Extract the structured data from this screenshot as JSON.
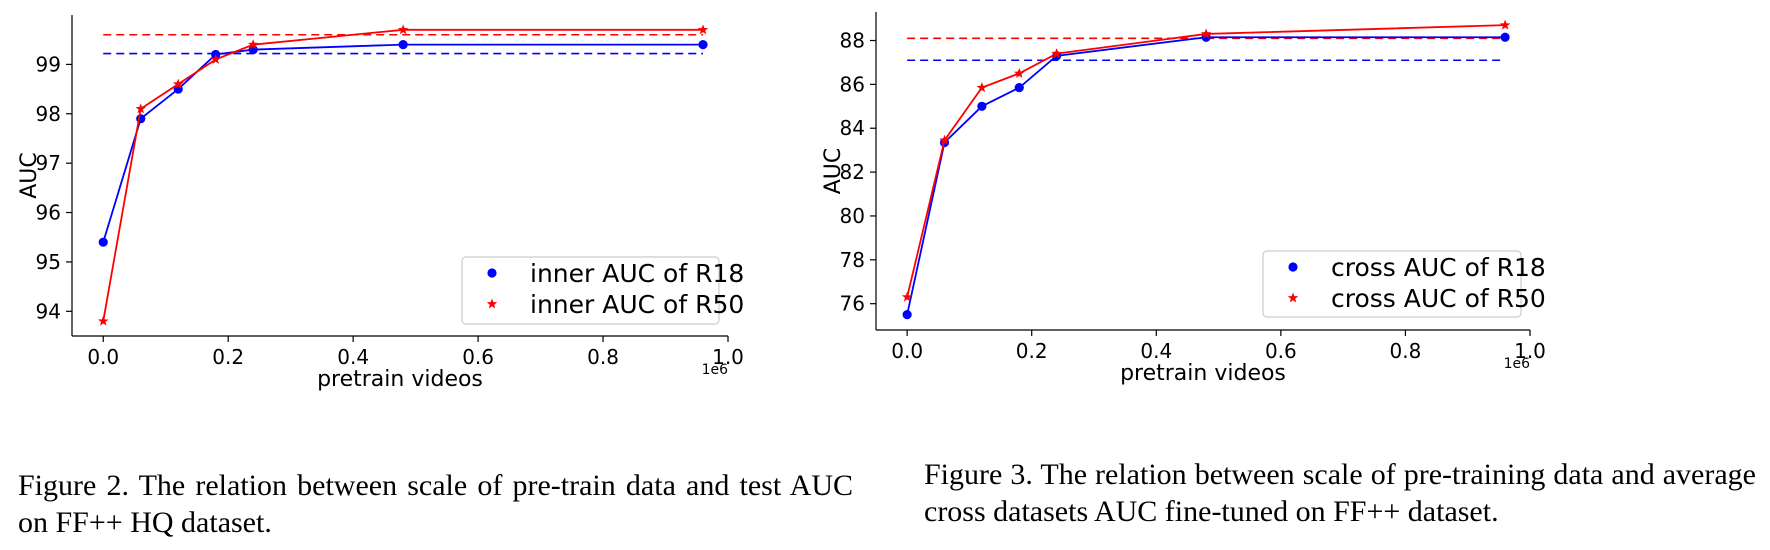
{
  "captions": {
    "fig2": "Figure 2. The relation between scale of pre-train data and test AUC on FF++ HQ dataset.",
    "fig3": "Figure 3.  The relation between scale of pre-training data and average cross datasets AUC fine-tuned on FF++ dataset."
  },
  "chart_data": [
    {
      "type": "line",
      "xlabel": "pretrain videos",
      "ylabel": "AUC",
      "x_offset_label": "1e6",
      "xticks": [
        0.0,
        0.2,
        0.4,
        0.6,
        0.8,
        1.0
      ],
      "xtick_labels": [
        "0.0",
        "0.2",
        "0.4",
        "0.6",
        "0.8",
        "1.0"
      ],
      "yticks": [
        94,
        95,
        96,
        97,
        98,
        99
      ],
      "ytick_labels": [
        "94",
        "95",
        "96",
        "97",
        "98",
        "99"
      ],
      "xlim": [
        -0.05,
        1.0
      ],
      "ylim": [
        93.5,
        100.0
      ],
      "grid": false,
      "legend_position": "lower-right",
      "series": [
        {
          "name": "inner AUC of R18",
          "color": "#0000ff",
          "marker": "circle",
          "x": [
            0.0,
            0.06,
            0.12,
            0.18,
            0.24,
            0.48,
            0.96
          ],
          "y": [
            95.4,
            97.9,
            98.5,
            99.2,
            99.3,
            99.4,
            99.4
          ],
          "baseline": 99.22
        },
        {
          "name": "inner AUC of R50",
          "color": "#ff0000",
          "marker": "star",
          "x": [
            0.0,
            0.06,
            0.12,
            0.18,
            0.24,
            0.48,
            0.96
          ],
          "y": [
            93.8,
            98.1,
            98.6,
            99.1,
            99.4,
            99.7,
            99.7
          ],
          "baseline": 99.6
        }
      ]
    },
    {
      "type": "line",
      "xlabel": "pretrain videos",
      "ylabel": "AUC",
      "x_offset_label": "1e6",
      "xticks": [
        0.0,
        0.2,
        0.4,
        0.6,
        0.8,
        1.0
      ],
      "xtick_labels": [
        "0.0",
        "0.2",
        "0.4",
        "0.6",
        "0.8",
        "1.0"
      ],
      "yticks": [
        76,
        78,
        80,
        82,
        84,
        86,
        88
      ],
      "ytick_labels": [
        "76",
        "78",
        "80",
        "82",
        "84",
        "86",
        "88"
      ],
      "xlim": [
        -0.05,
        1.0
      ],
      "ylim": [
        74.8,
        89.3
      ],
      "grid": false,
      "legend_position": "lower-right",
      "series": [
        {
          "name": "cross AUC of R18",
          "color": "#0000ff",
          "marker": "circle",
          "x": [
            0.0,
            0.06,
            0.12,
            0.18,
            0.24,
            0.48,
            0.96
          ],
          "y": [
            75.5,
            83.35,
            85.0,
            85.85,
            87.3,
            88.15,
            88.15
          ],
          "baseline": 87.1
        },
        {
          "name": "cross AUC of R50",
          "color": "#ff0000",
          "marker": "star",
          "x": [
            0.0,
            0.06,
            0.12,
            0.18,
            0.24,
            0.48,
            0.96
          ],
          "y": [
            76.3,
            83.45,
            85.85,
            86.5,
            87.4,
            88.3,
            88.7
          ],
          "baseline": 88.1
        }
      ]
    }
  ]
}
